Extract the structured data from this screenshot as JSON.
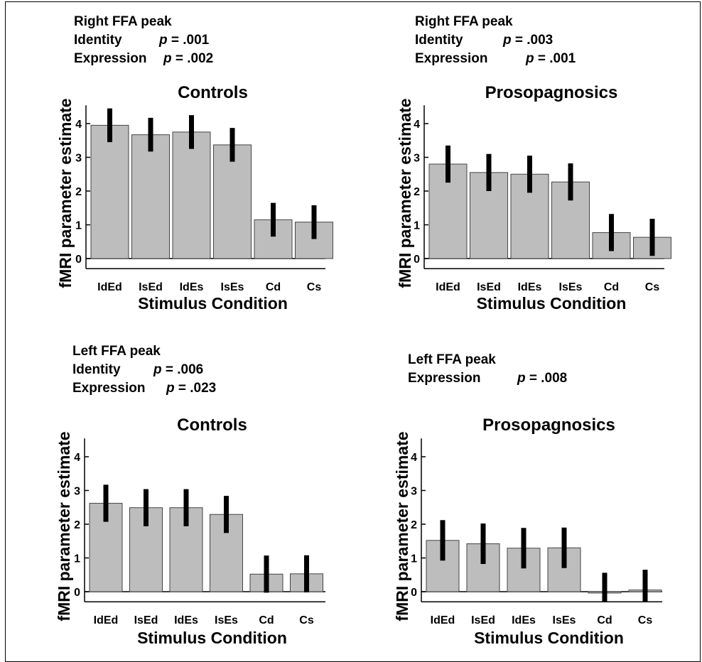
{
  "chart_data": [
    {
      "type": "bar",
      "annotation": {
        "title": "Right FFA peak",
        "rows": [
          {
            "label": "Identity",
            "p_label": "p",
            "p_value": "= .001"
          },
          {
            "label": "Expression",
            "p_label": "p",
            "p_value": "= .002"
          }
        ]
      },
      "title": "Controls",
      "xlabel": "Stimulus Condition",
      "ylabel": "fMRI parameter estimate",
      "ylim": [
        -0.3,
        4.5
      ],
      "yticks": [
        "0",
        "1",
        "2",
        "3",
        "4"
      ],
      "categories": [
        "IdEd",
        "IsEd",
        "IdEs",
        "IsEs",
        "Cd",
        "Cs"
      ],
      "values": [
        3.95,
        3.67,
        3.75,
        3.37,
        1.15,
        1.08
      ],
      "error_low": [
        3.45,
        3.17,
        3.25,
        2.87,
        0.65,
        0.58
      ],
      "error_high": [
        4.45,
        4.17,
        4.25,
        3.87,
        1.65,
        1.58
      ],
      "bar_color": "#bdbdbd",
      "error_color": "#000000"
    },
    {
      "type": "bar",
      "annotation": {
        "title": "Right FFA peak",
        "rows": [
          {
            "label": "Identity",
            "p_label": "p",
            "p_value": "= .003"
          },
          {
            "label": "Expression",
            "p_label": "p",
            "p_value": "= .001"
          }
        ]
      },
      "title": "Prosopagnosics",
      "xlabel": "Stimulus Condition",
      "ylabel": "fMRI parameter estimate",
      "ylim": [
        -0.3,
        4.5
      ],
      "yticks": [
        "0",
        "1",
        "2",
        "3",
        "4"
      ],
      "categories": [
        "IdEd",
        "IsEd",
        "IdEs",
        "IsEs",
        "Cd",
        "Cs"
      ],
      "values": [
        2.8,
        2.55,
        2.5,
        2.27,
        0.77,
        0.63
      ],
      "error_low": [
        2.25,
        2.0,
        1.95,
        1.72,
        0.22,
        0.08
      ],
      "error_high": [
        3.35,
        3.1,
        3.05,
        2.82,
        1.32,
        1.18
      ],
      "bar_color": "#bdbdbd",
      "error_color": "#000000"
    },
    {
      "type": "bar",
      "annotation": {
        "title": "Left FFA peak",
        "rows": [
          {
            "label": "Identity",
            "p_label": "p",
            "p_value": "= .006"
          },
          {
            "label": "Expression",
            "p_label": "p",
            "p_value": "= .023"
          }
        ]
      },
      "title": "Controls",
      "xlabel": "Stimulus Condition",
      "ylabel": "fMRI parameter estimate",
      "ylim": [
        -0.3,
        4.5
      ],
      "yticks": [
        "0",
        "1",
        "2",
        "3",
        "4"
      ],
      "categories": [
        "IdEd",
        "IsEd",
        "IdEs",
        "IsEs",
        "Cd",
        "Cs"
      ],
      "values": [
        2.62,
        2.49,
        2.49,
        2.29,
        0.52,
        0.53
      ],
      "error_low": [
        2.07,
        1.94,
        1.94,
        1.74,
        -0.03,
        -0.02
      ],
      "error_high": [
        3.17,
        3.04,
        3.04,
        2.84,
        1.07,
        1.08
      ],
      "bar_color": "#bdbdbd",
      "error_color": "#000000"
    },
    {
      "type": "bar",
      "annotation": {
        "title": "Left FFA peak",
        "rows": [
          {
            "label": "Expression",
            "p_label": "p",
            "p_value": "= .008"
          }
        ]
      },
      "title": "Prosopagnosics",
      "xlabel": "Stimulus Condition",
      "ylabel": "fMRI parameter estimate",
      "ylim": [
        -0.3,
        4.5
      ],
      "yticks": [
        "0",
        "1",
        "2",
        "3",
        "4"
      ],
      "categories": [
        "IdEd",
        "IsEd",
        "IdEs",
        "IsEs",
        "Cd",
        "Cs"
      ],
      "values": [
        1.52,
        1.42,
        1.29,
        1.3,
        -0.04,
        0.05
      ],
      "error_low": [
        0.92,
        0.82,
        0.69,
        0.7,
        -0.64,
        -0.55
      ],
      "error_high": [
        2.12,
        2.02,
        1.89,
        1.9,
        0.56,
        0.65
      ],
      "bar_color": "#bdbdbd",
      "error_color": "#000000"
    }
  ]
}
